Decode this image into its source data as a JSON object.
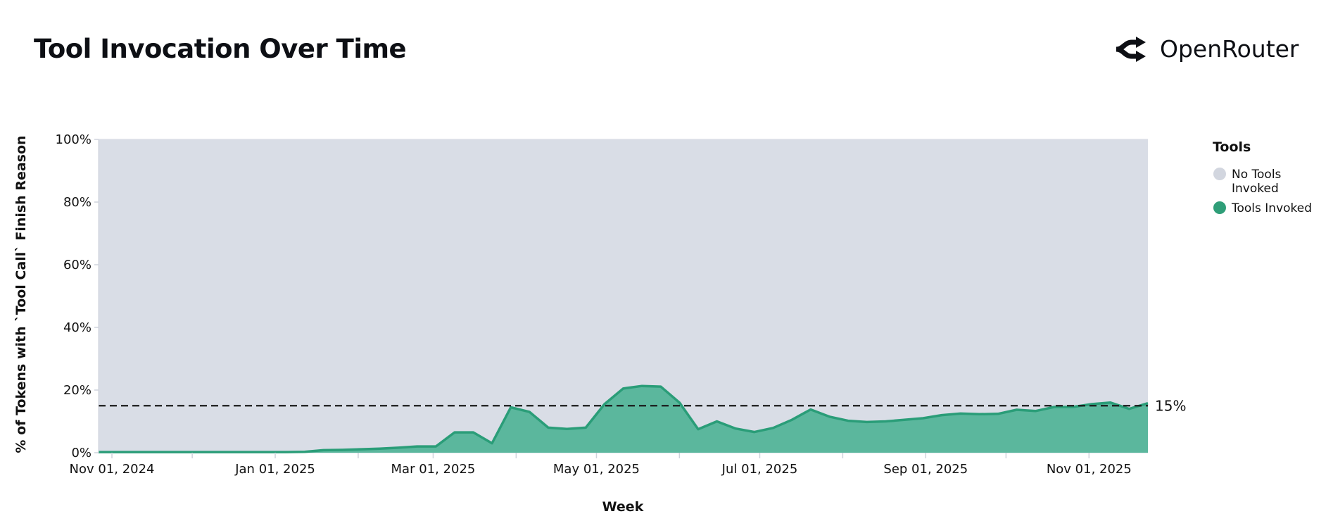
{
  "header": {
    "title": "Tool Invocation Over Time",
    "brand": "OpenRouter"
  },
  "legend": {
    "title": "Tools",
    "items": [
      {
        "label_lines": [
          "No Tools",
          "Invoked"
        ],
        "color": "#d2d6df"
      },
      {
        "label_lines": [
          "Tools Invoked"
        ],
        "color": "#2f9e78"
      }
    ]
  },
  "colors": {
    "plot_background": "#d9dde6",
    "area_fill": "#5bb79d",
    "area_line": "#2a9d78",
    "reference_line": "#1a1a1a"
  },
  "chart_data": {
    "type": "area",
    "stacked": true,
    "xlabel": "Week",
    "ylabel": "% of Tokens with `Tool Call` Finish Reason",
    "ylim": [
      0,
      100
    ],
    "yticks": [
      "0%",
      "20%",
      "40%",
      "60%",
      "80%",
      "100%"
    ],
    "ytick_values": [
      0,
      20,
      40,
      60,
      80,
      100
    ],
    "xlim": [
      "2024-10-27",
      "2025-11-23"
    ],
    "xtick_dates": [
      "2024-11-01",
      "2024-12-01",
      "2025-01-01",
      "2025-02-01",
      "2025-03-01",
      "2025-04-01",
      "2025-05-01",
      "2025-06-01",
      "2025-07-01",
      "2025-08-01",
      "2025-09-01",
      "2025-10-01",
      "2025-11-01"
    ],
    "xtick_labels": [
      "Nov 01, 2024",
      "",
      "Jan 01, 2025",
      "",
      "Mar 01, 2025",
      "",
      "May 01, 2025",
      "",
      "Jul 01, 2025",
      "",
      "Sep 01, 2025",
      "",
      "Nov 01, 2025"
    ],
    "grid": true,
    "legend_position": "right",
    "reference_line": {
      "value": 15,
      "label": "15%",
      "style": "dashed"
    },
    "x": [
      "2024-10-27",
      "2024-11-03",
      "2024-11-10",
      "2024-11-17",
      "2024-11-24",
      "2024-12-01",
      "2024-12-08",
      "2024-12-15",
      "2024-12-22",
      "2024-12-29",
      "2025-01-05",
      "2025-01-12",
      "2025-01-19",
      "2025-01-26",
      "2025-02-02",
      "2025-02-09",
      "2025-02-16",
      "2025-02-23",
      "2025-03-02",
      "2025-03-09",
      "2025-03-16",
      "2025-03-23",
      "2025-03-30",
      "2025-04-06",
      "2025-04-13",
      "2025-04-20",
      "2025-04-27",
      "2025-05-04",
      "2025-05-11",
      "2025-05-18",
      "2025-05-25",
      "2025-06-01",
      "2025-06-08",
      "2025-06-15",
      "2025-06-22",
      "2025-06-29",
      "2025-07-06",
      "2025-07-13",
      "2025-07-20",
      "2025-07-27",
      "2025-08-03",
      "2025-08-10",
      "2025-08-17",
      "2025-08-24",
      "2025-08-31",
      "2025-09-07",
      "2025-09-14",
      "2025-09-21",
      "2025-09-28",
      "2025-10-05",
      "2025-10-12",
      "2025-10-19",
      "2025-10-26",
      "2025-11-02",
      "2025-11-09",
      "2025-11-16",
      "2025-11-23"
    ],
    "series": [
      {
        "name": "Tools Invoked",
        "values": [
          0.2,
          0.2,
          0.2,
          0.2,
          0.2,
          0.2,
          0.2,
          0.2,
          0.2,
          0.2,
          0.2,
          0.3,
          0.8,
          0.9,
          1.1,
          1.3,
          1.6,
          2.0,
          2.0,
          6.5,
          6.5,
          3.0,
          14.5,
          13.0,
          8.0,
          7.6,
          8.0,
          15.5,
          20.5,
          21.3,
          21.1,
          16.0,
          7.5,
          10.0,
          7.7,
          6.6,
          7.9,
          10.5,
          13.8,
          11.5,
          10.2,
          9.8,
          10.0,
          10.5,
          11.0,
          12.0,
          12.5,
          12.3,
          12.4,
          13.7,
          13.3,
          14.6,
          14.6,
          15.5,
          16.0,
          14.0,
          15.8
        ]
      },
      {
        "name": "No Tools Invoked",
        "values": "remainder to 100%"
      }
    ]
  }
}
